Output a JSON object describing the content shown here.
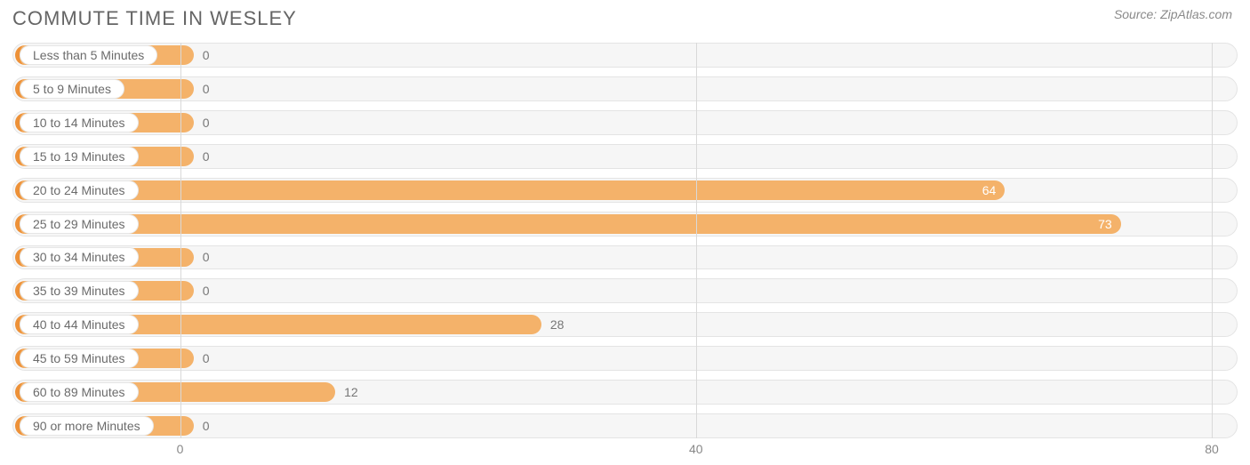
{
  "title": "COMMUTE TIME IN WESLEY",
  "source": "Source: ZipAtlas.com",
  "chart": {
    "type": "bar-horizontal",
    "background_color": "#ffffff",
    "row_bg": "#f6f6f6",
    "row_border": "#e4e4e4",
    "grid_color": "#d9d9d9",
    "bar_color": "#f4b26a",
    "bar_accent": "#ed9138",
    "label_color_outside": "#777777",
    "label_color_inside": "#ffffff",
    "pill_bg": "#ffffff",
    "pill_border": "#e6e6e6",
    "pill_text": "#6b6b6b",
    "title_color": "#656565",
    "source_color": "#8a8a8a",
    "xmin": -13,
    "xmax": 82,
    "ticks": [
      0,
      40,
      80
    ],
    "min_bar_value": 1,
    "label_fontsize": 14,
    "title_fontsize": 22,
    "border_radius": 14,
    "row_gap": 10,
    "categories": [
      {
        "label": "Less than 5 Minutes",
        "value": 0
      },
      {
        "label": "5 to 9 Minutes",
        "value": 0
      },
      {
        "label": "10 to 14 Minutes",
        "value": 0
      },
      {
        "label": "15 to 19 Minutes",
        "value": 0
      },
      {
        "label": "20 to 24 Minutes",
        "value": 64
      },
      {
        "label": "25 to 29 Minutes",
        "value": 73
      },
      {
        "label": "30 to 34 Minutes",
        "value": 0
      },
      {
        "label": "35 to 39 Minutes",
        "value": 0
      },
      {
        "label": "40 to 44 Minutes",
        "value": 28
      },
      {
        "label": "45 to 59 Minutes",
        "value": 0
      },
      {
        "label": "60 to 89 Minutes",
        "value": 12
      },
      {
        "label": "90 or more Minutes",
        "value": 0
      }
    ]
  }
}
